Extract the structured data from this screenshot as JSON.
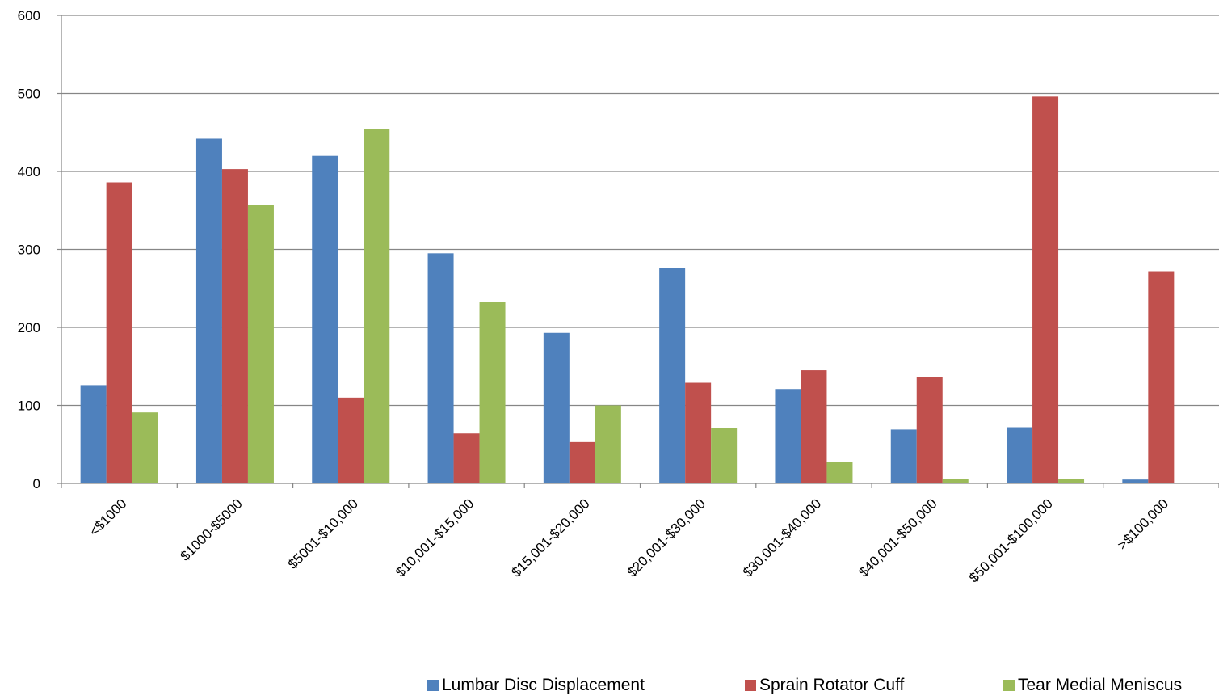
{
  "chart_data": {
    "type": "bar",
    "categories": [
      "<$1000",
      "$1000-$5000",
      "$5001-$10,000",
      "$10,001-$15,000",
      "$15,001-$20,000",
      "$20,001-$30,000",
      "$30,001-$40,000",
      "$40,001-$50,000",
      "$50,001-$100,000",
      ">$100,000"
    ],
    "series": [
      {
        "name": "Lumbar Disc Displacement",
        "color": "#4F81BD",
        "values": [
          126,
          442,
          420,
          295,
          193,
          276,
          121,
          69,
          72,
          5
        ]
      },
      {
        "name": "Sprain Rotator Cuff",
        "color": "#C0504D",
        "values": [
          386,
          403,
          110,
          64,
          53,
          129,
          145,
          136,
          496,
          272
        ]
      },
      {
        "name": "Tear Medial Meniscus",
        "color": "#9BBB59",
        "values": [
          91,
          357,
          454,
          233,
          100,
          71,
          27,
          6,
          6,
          0
        ]
      }
    ],
    "y_ticks": [
      "0",
      "100",
      "200",
      "300",
      "400",
      "500",
      "600"
    ],
    "ylim": [
      0,
      600
    ],
    "grid": true,
    "legend_position": "bottom-right",
    "title": "",
    "xlabel": "",
    "ylabel": ""
  }
}
